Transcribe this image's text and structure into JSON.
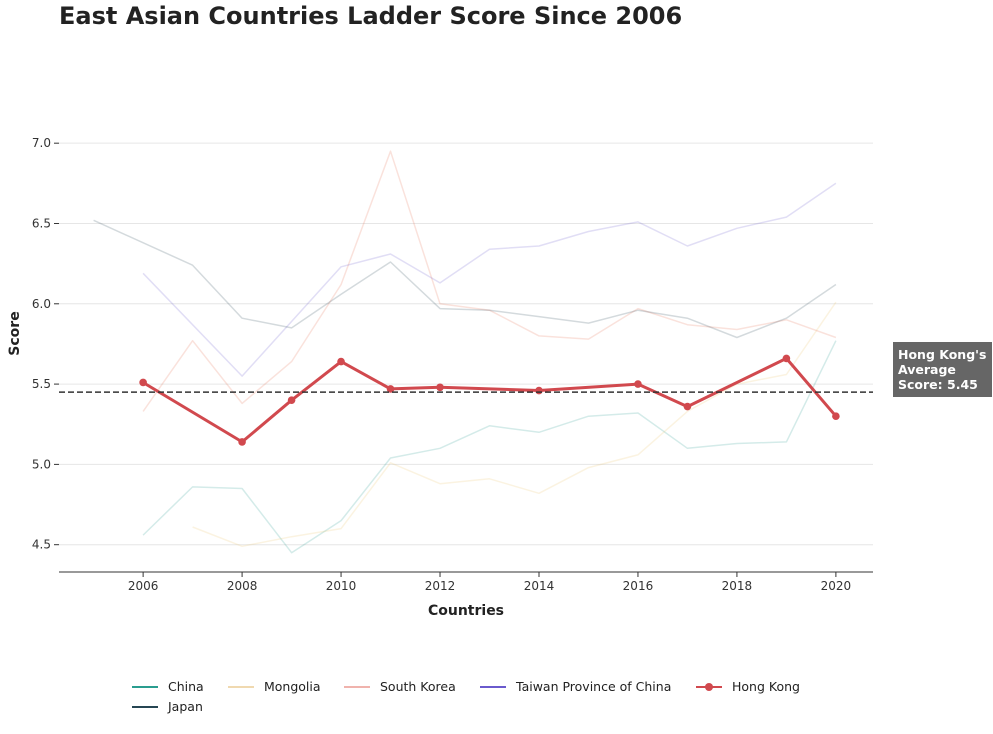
{
  "chart_data": {
    "type": "line",
    "title": "East Asian Countries Ladder Score Since 2006",
    "xlabel": "Countries",
    "ylabel": "Score",
    "xlim": [
      2004.3,
      2020.75
    ],
    "ylim": [
      4.33,
      7.3
    ],
    "x_ticks": [
      "2006",
      "2008",
      "2010",
      "2012",
      "2014",
      "2016",
      "2018",
      "2020"
    ],
    "y_ticks": [
      "4.5",
      "5.0",
      "5.5",
      "6.0",
      "6.5",
      "7.0"
    ],
    "grid": "horizontal",
    "legend_position": "bottom",
    "series": [
      {
        "name": "China",
        "color": "#2a9d8f",
        "opacity": 0.2,
        "highlight": false,
        "x": [
          2006,
          2007,
          2008,
          2009,
          2010,
          2011,
          2012,
          2013,
          2014,
          2015,
          2016,
          2017,
          2018,
          2019,
          2020
        ],
        "y": [
          4.56,
          4.86,
          4.85,
          4.45,
          4.65,
          5.04,
          5.1,
          5.24,
          5.2,
          5.3,
          5.32,
          5.1,
          5.13,
          5.14,
          5.77
        ]
      },
      {
        "name": "Mongolia",
        "color": "#e9c46a",
        "opacity": 0.2,
        "highlight": false,
        "x": [
          2007,
          2008,
          2009,
          2010,
          2011,
          2012,
          2013,
          2014,
          2015,
          2016,
          2017,
          2018,
          2019,
          2020
        ],
        "y": [
          4.61,
          4.49,
          4.55,
          4.6,
          5.01,
          4.88,
          4.91,
          4.82,
          4.98,
          5.06,
          5.33,
          5.5,
          5.56,
          6.01
        ]
      },
      {
        "name": "South Korea",
        "color": "#e76f51",
        "opacity": 0.2,
        "highlight": false,
        "x": [
          2006,
          2007,
          2008,
          2009,
          2010,
          2011,
          2012,
          2013,
          2014,
          2015,
          2016,
          2017,
          2018,
          2019,
          2020
        ],
        "y": [
          5.33,
          5.77,
          5.38,
          5.64,
          6.12,
          6.95,
          6.0,
          5.96,
          5.8,
          5.78,
          5.97,
          5.87,
          5.84,
          5.9,
          5.79
        ]
      },
      {
        "name": "Taiwan Province of China",
        "color": "#6a5acd",
        "opacity": 0.2,
        "highlight": false,
        "x": [
          2006,
          2008,
          2010,
          2011,
          2012,
          2013,
          2014,
          2015,
          2016,
          2017,
          2018,
          2019,
          2020
        ],
        "y": [
          6.19,
          5.55,
          6.23,
          6.31,
          6.13,
          6.34,
          6.36,
          6.45,
          6.51,
          6.36,
          6.47,
          6.54,
          6.75
        ]
      },
      {
        "name": "Japan",
        "color": "#264653",
        "opacity": 0.2,
        "highlight": false,
        "x": [
          2005,
          2007,
          2008,
          2009,
          2010,
          2011,
          2012,
          2013,
          2014,
          2015,
          2016,
          2017,
          2018,
          2019,
          2020
        ],
        "y": [
          6.52,
          6.24,
          5.91,
          5.85,
          6.06,
          6.26,
          5.97,
          5.96,
          5.92,
          5.88,
          5.96,
          5.91,
          5.79,
          5.91,
          6.12
        ]
      },
      {
        "name": "Hong Kong",
        "color": "#d1494e",
        "opacity": 1,
        "highlight": true,
        "x": [
          2006,
          2008,
          2009,
          2010,
          2011,
          2012,
          2014,
          2016,
          2017,
          2019,
          2020
        ],
        "y": [
          5.51,
          5.14,
          5.4,
          5.64,
          5.47,
          5.48,
          5.46,
          5.5,
          5.36,
          5.66,
          5.3
        ]
      }
    ],
    "average_line": {
      "value": 5.45,
      "label": "Hong Kong's Average Score: 5.45"
    }
  },
  "legend": [
    {
      "name": "China",
      "color": "#2a9d8f",
      "marker": false
    },
    {
      "name": "Mongolia",
      "color": "#f0d9b0",
      "marker": false
    },
    {
      "name": "South Korea",
      "color": "#f0b3ad",
      "marker": false
    },
    {
      "name": "Taiwan Province of China",
      "color": "#6a5acd",
      "marker": false
    },
    {
      "name": "Hong Kong",
      "color": "#d1494e",
      "marker": true
    },
    {
      "name": "Japan",
      "color": "#264653",
      "marker": false
    }
  ]
}
